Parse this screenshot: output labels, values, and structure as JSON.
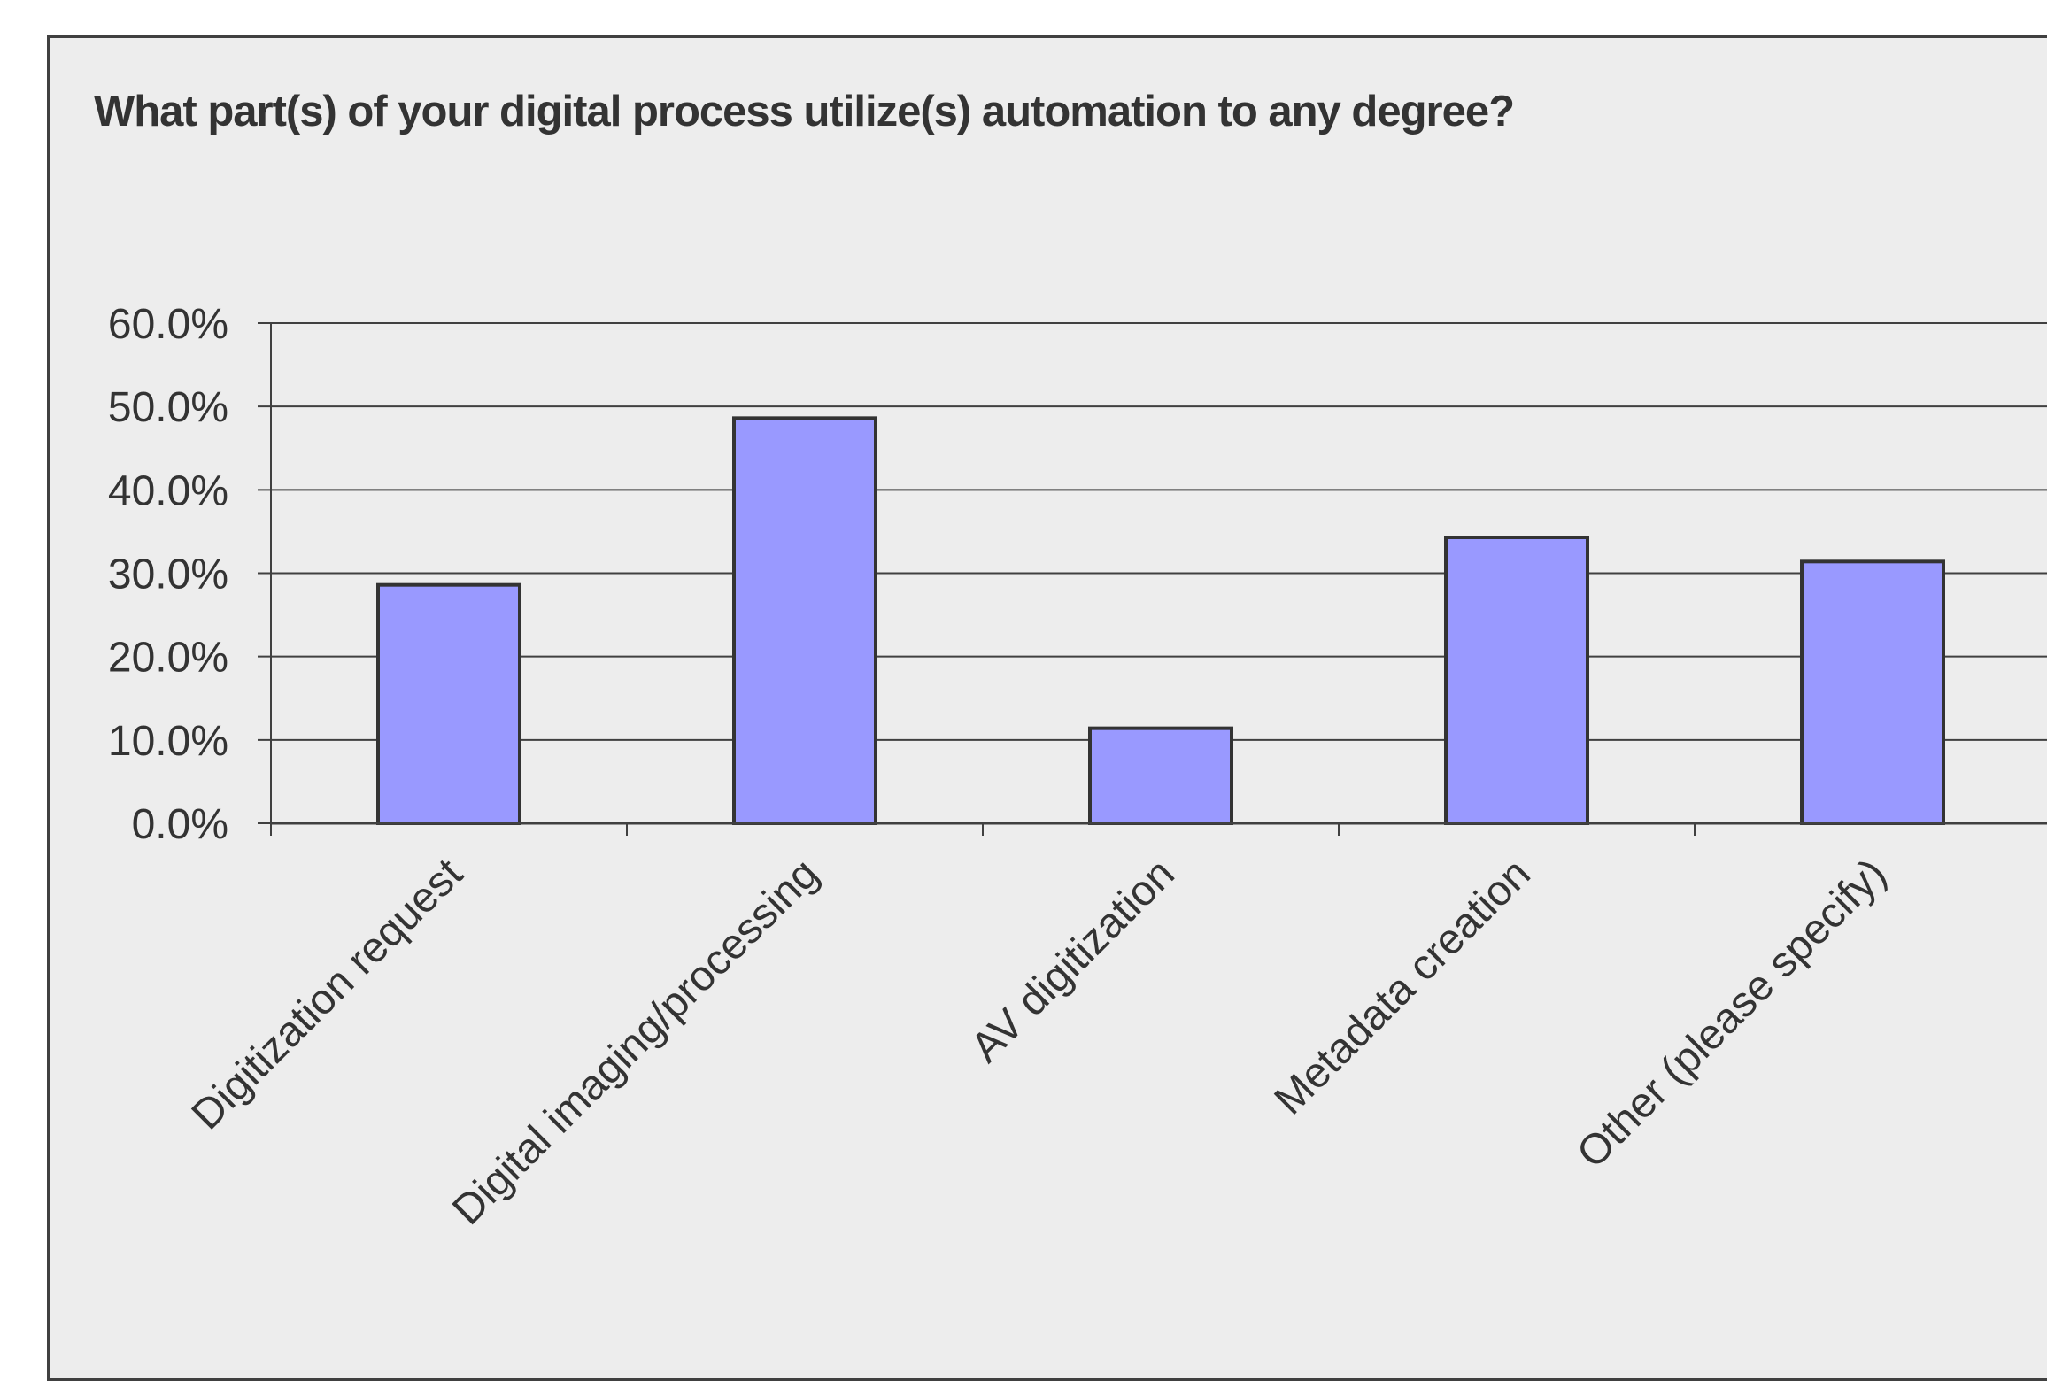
{
  "chart_data": {
    "type": "bar",
    "title": "What part(s) of your digital process utilize(s) automation to any degree?",
    "xlabel": "",
    "ylabel": "",
    "categories": [
      "Digitization request",
      "Digital imaging/processing",
      "AV digitization",
      "Metadata creation",
      "Other (please specify)"
    ],
    "values": [
      28.6,
      48.6,
      11.4,
      34.3,
      31.4
    ],
    "ylim": [
      0,
      60
    ],
    "yticks": [
      "0.0%",
      "10.0%",
      "20.0%",
      "30.0%",
      "40.0%",
      "50.0%",
      "60.0%"
    ],
    "grid": true,
    "legend": "none",
    "bar_color": "#9999ff",
    "bar_edge_color": "#333333"
  }
}
